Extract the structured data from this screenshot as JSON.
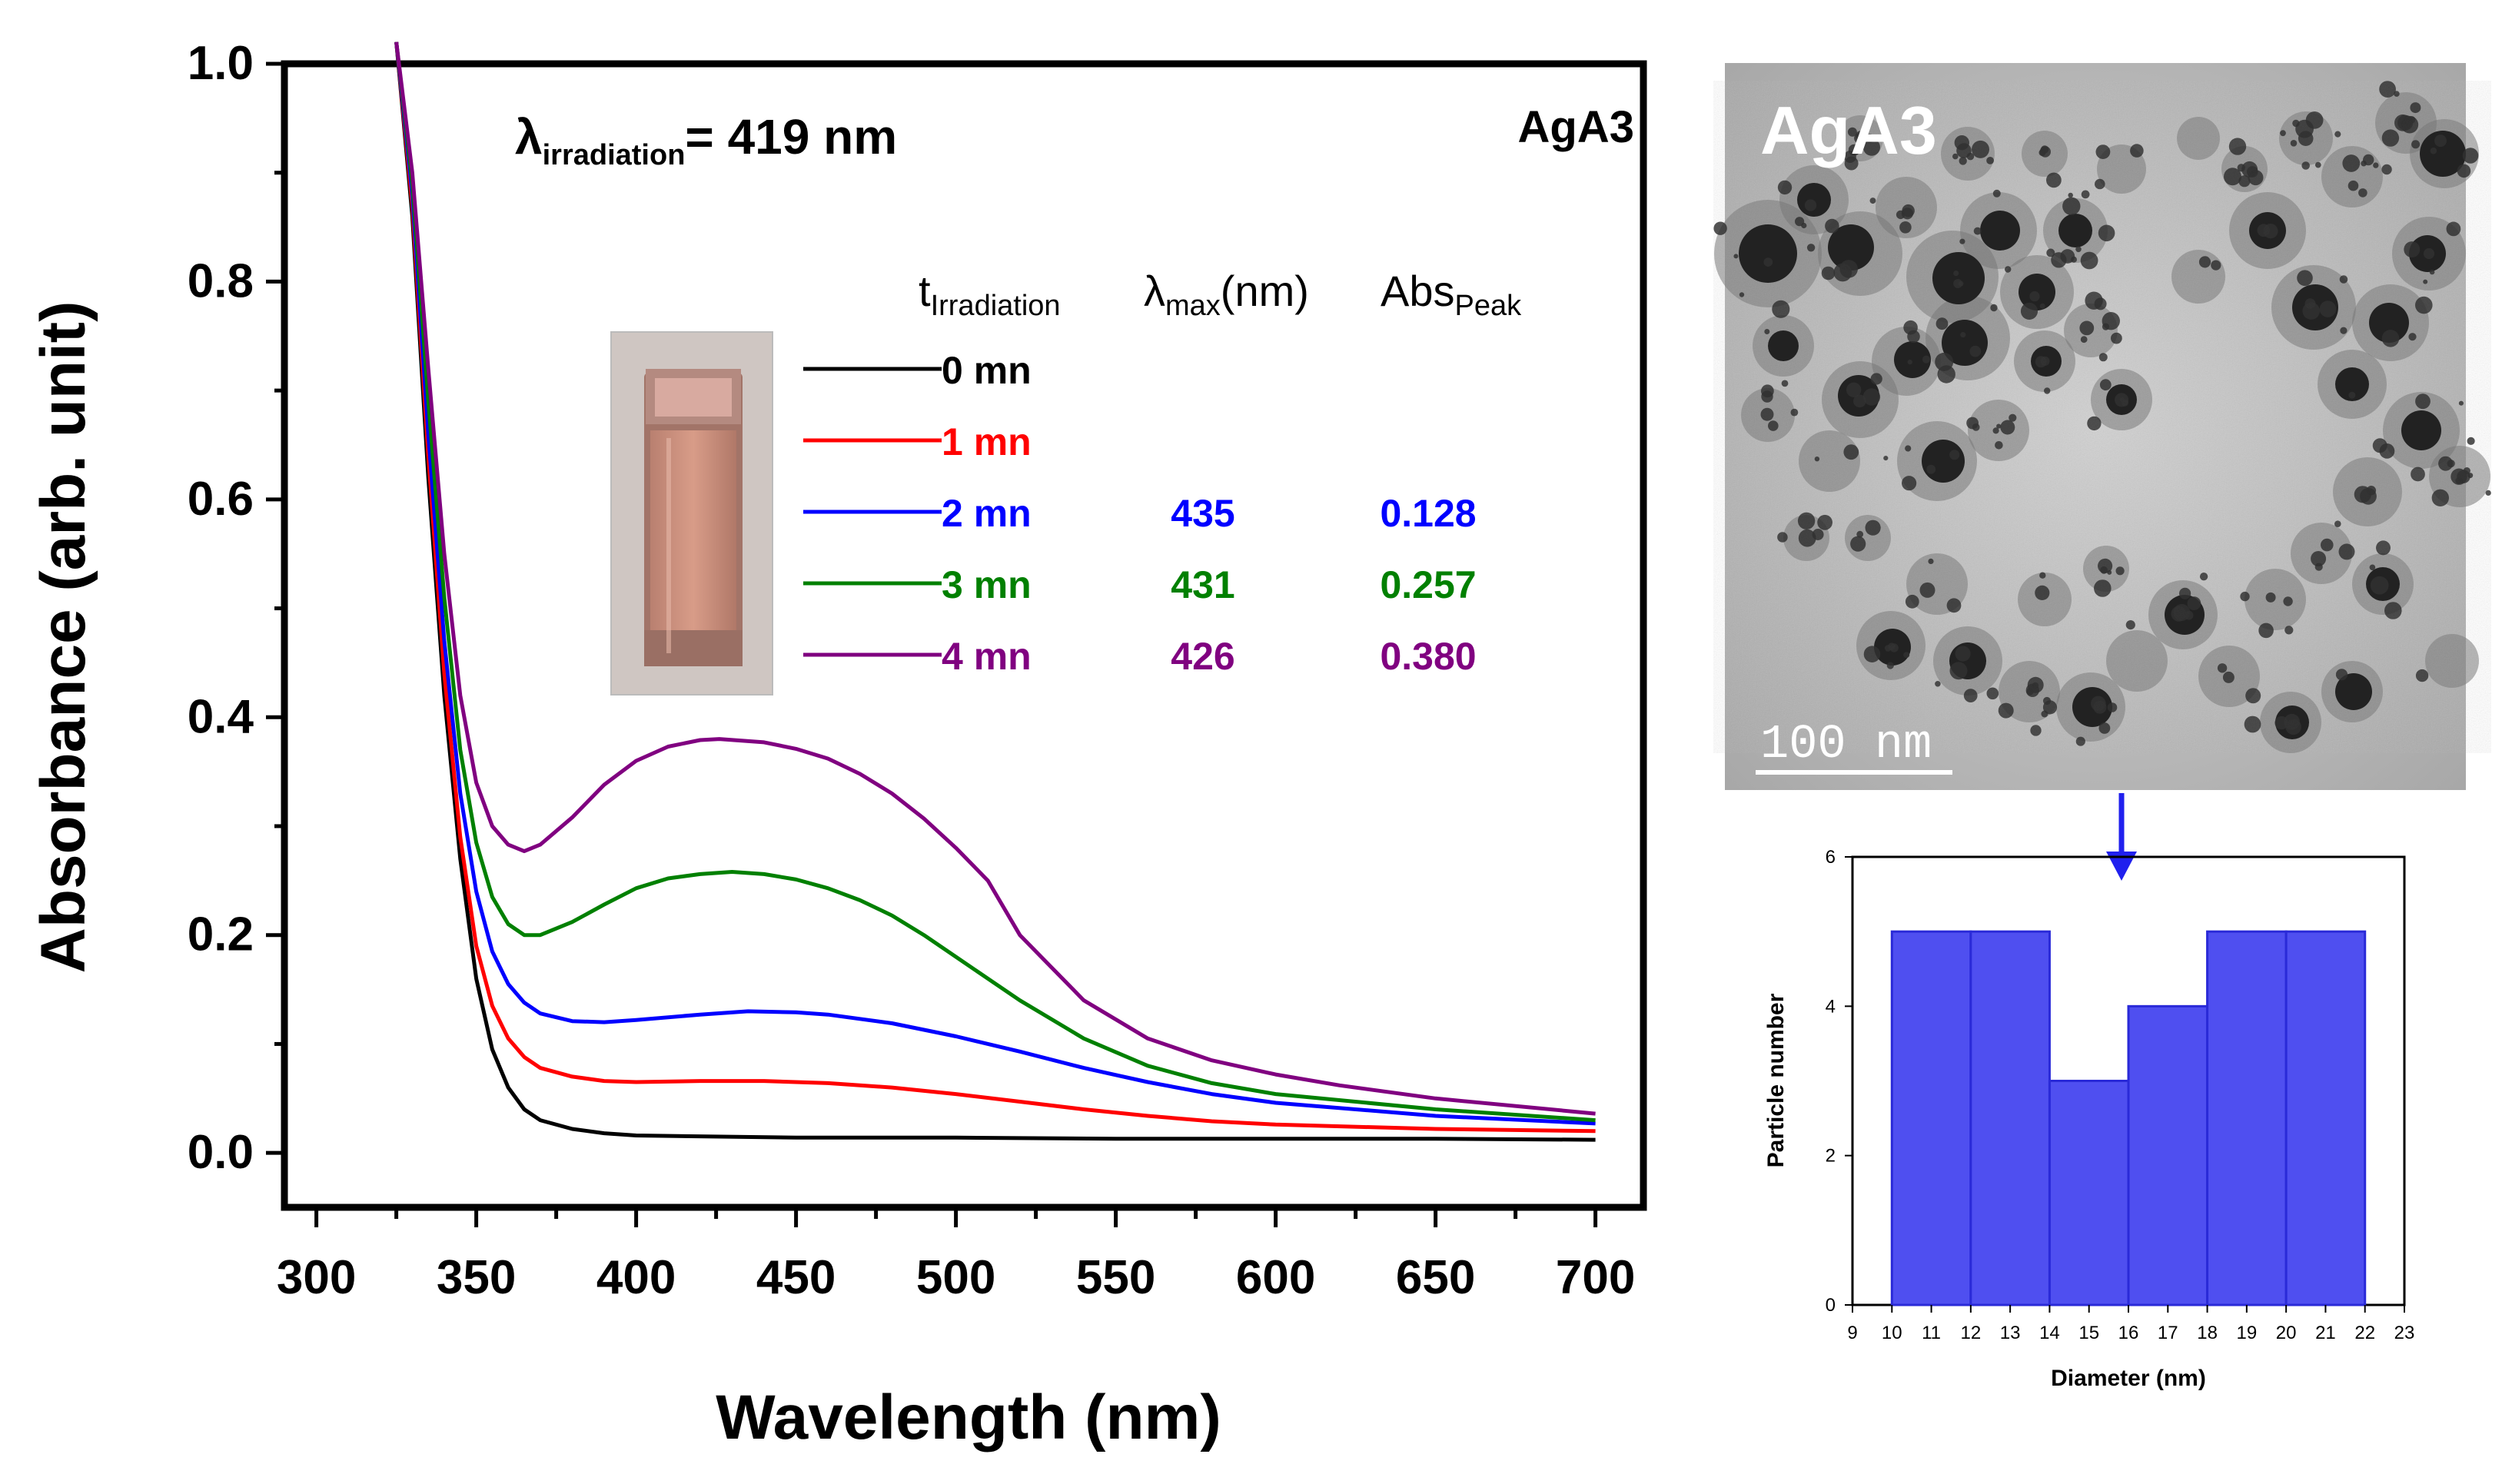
{
  "chart_data": [
    {
      "type": "line",
      "panel": "uv-vis spectra",
      "sample_label": "AgA3",
      "xlabel": "Wavelength (nm)",
      "ylabel": "Absorbance (arb. unit)",
      "xlim": [
        290,
        715
      ],
      "ylim": [
        -0.05,
        1.0
      ],
      "xticks": [
        "300",
        "350",
        "400",
        "450",
        "500",
        "550",
        "600",
        "650",
        "700"
      ],
      "yticks": [
        "0.0",
        "0.2",
        "0.4",
        "0.6",
        "0.8",
        "1.0"
      ],
      "irradiation": {
        "symbol": "λ",
        "subscript": "irradiation",
        "value": "= 419 nm"
      },
      "legend_headers": {
        "time": "t",
        "time_sub": "Irradiation",
        "lmax": "λ",
        "lmax_sub": "max",
        "lmax_unit": "(nm)",
        "abs": "Abs",
        "abs_sub": "Peak"
      },
      "series": [
        {
          "name": "0 mn",
          "color": "#000000",
          "lambda_max": "",
          "abs_peak": "",
          "points": [
            [
              325,
              1.02
            ],
            [
              330,
              0.86
            ],
            [
              335,
              0.62
            ],
            [
              340,
              0.42
            ],
            [
              345,
              0.27
            ],
            [
              350,
              0.16
            ],
            [
              355,
              0.095
            ],
            [
              360,
              0.06
            ],
            [
              365,
              0.04
            ],
            [
              370,
              0.03
            ],
            [
              380,
              0.022
            ],
            [
              390,
              0.018
            ],
            [
              400,
              0.016
            ],
            [
              450,
              0.014
            ],
            [
              500,
              0.014
            ],
            [
              550,
              0.013
            ],
            [
              600,
              0.013
            ],
            [
              650,
              0.013
            ],
            [
              700,
              0.012
            ]
          ]
        },
        {
          "name": "1 mn",
          "color": "#ff0000",
          "lambda_max": "",
          "abs_peak": "",
          "points": [
            [
              325,
              1.02
            ],
            [
              330,
              0.87
            ],
            [
              335,
              0.64
            ],
            [
              340,
              0.44
            ],
            [
              345,
              0.29
            ],
            [
              350,
              0.19
            ],
            [
              355,
              0.135
            ],
            [
              360,
              0.105
            ],
            [
              365,
              0.088
            ],
            [
              370,
              0.078
            ],
            [
              380,
              0.07
            ],
            [
              390,
              0.066
            ],
            [
              400,
              0.065
            ],
            [
              420,
              0.066
            ],
            [
              440,
              0.066
            ],
            [
              460,
              0.064
            ],
            [
              480,
              0.06
            ],
            [
              500,
              0.054
            ],
            [
              520,
              0.047
            ],
            [
              540,
              0.04
            ],
            [
              560,
              0.034
            ],
            [
              580,
              0.029
            ],
            [
              600,
              0.026
            ],
            [
              650,
              0.022
            ],
            [
              700,
              0.02
            ]
          ]
        },
        {
          "name": "2 mn",
          "color": "#0000ff",
          "lambda_max": "435",
          "abs_peak": "0.128",
          "points": [
            [
              325,
              1.02
            ],
            [
              330,
              0.88
            ],
            [
              335,
              0.66
            ],
            [
              340,
              0.47
            ],
            [
              345,
              0.33
            ],
            [
              350,
              0.24
            ],
            [
              355,
              0.185
            ],
            [
              360,
              0.155
            ],
            [
              365,
              0.138
            ],
            [
              370,
              0.128
            ],
            [
              380,
              0.121
            ],
            [
              390,
              0.12
            ],
            [
              400,
              0.122
            ],
            [
              420,
              0.127
            ],
            [
              435,
              0.13
            ],
            [
              450,
              0.129
            ],
            [
              460,
              0.127
            ],
            [
              480,
              0.119
            ],
            [
              500,
              0.107
            ],
            [
              520,
              0.093
            ],
            [
              540,
              0.078
            ],
            [
              560,
              0.065
            ],
            [
              580,
              0.054
            ],
            [
              600,
              0.046
            ],
            [
              650,
              0.034
            ],
            [
              700,
              0.027
            ]
          ]
        },
        {
          "name": "3 mn",
          "color": "#008000",
          "lambda_max": "431",
          "abs_peak": "0.257",
          "points": [
            [
              325,
              1.02
            ],
            [
              330,
              0.89
            ],
            [
              335,
              0.69
            ],
            [
              340,
              0.51
            ],
            [
              345,
              0.37
            ],
            [
              350,
              0.285
            ],
            [
              355,
              0.235
            ],
            [
              360,
              0.21
            ],
            [
              365,
              0.2
            ],
            [
              370,
              0.2
            ],
            [
              380,
              0.212
            ],
            [
              390,
              0.228
            ],
            [
              400,
              0.243
            ],
            [
              410,
              0.252
            ],
            [
              420,
              0.256
            ],
            [
              430,
              0.258
            ],
            [
              440,
              0.256
            ],
            [
              450,
              0.251
            ],
            [
              460,
              0.243
            ],
            [
              470,
              0.232
            ],
            [
              480,
              0.218
            ],
            [
              490,
              0.2
            ],
            [
              500,
              0.18
            ],
            [
              520,
              0.14
            ],
            [
              540,
              0.105
            ],
            [
              560,
              0.08
            ],
            [
              580,
              0.064
            ],
            [
              600,
              0.054
            ],
            [
              650,
              0.04
            ],
            [
              700,
              0.03
            ]
          ]
        },
        {
          "name": "4 mn",
          "color": "#800080",
          "lambda_max": "426",
          "abs_peak": "0.380",
          "points": [
            [
              325,
              1.02
            ],
            [
              330,
              0.9
            ],
            [
              335,
              0.72
            ],
            [
              340,
              0.55
            ],
            [
              345,
              0.42
            ],
            [
              350,
              0.34
            ],
            [
              355,
              0.3
            ],
            [
              360,
              0.283
            ],
            [
              365,
              0.277
            ],
            [
              370,
              0.283
            ],
            [
              380,
              0.308
            ],
            [
              390,
              0.338
            ],
            [
              400,
              0.36
            ],
            [
              410,
              0.373
            ],
            [
              420,
              0.379
            ],
            [
              426,
              0.38
            ],
            [
              440,
              0.377
            ],
            [
              450,
              0.371
            ],
            [
              460,
              0.362
            ],
            [
              470,
              0.348
            ],
            [
              480,
              0.33
            ],
            [
              490,
              0.307
            ],
            [
              500,
              0.28
            ],
            [
              510,
              0.25
            ],
            [
              520,
              0.2
            ],
            [
              530,
              0.17
            ],
            [
              540,
              0.14
            ],
            [
              560,
              0.105
            ],
            [
              580,
              0.085
            ],
            [
              600,
              0.072
            ],
            [
              620,
              0.062
            ],
            [
              650,
              0.05
            ],
            [
              700,
              0.036
            ]
          ]
        }
      ]
    },
    {
      "type": "bar",
      "panel": "size histogram",
      "xlabel": "Diameter (nm)",
      "ylabel": "Particle number",
      "xlim": [
        9,
        23
      ],
      "ylim": [
        0,
        6
      ],
      "xticks": [
        "9",
        "10",
        "11",
        "12",
        "13",
        "14",
        "15",
        "16",
        "17",
        "18",
        "19",
        "20",
        "21",
        "22",
        "23"
      ],
      "yticks": [
        "0",
        "2",
        "4",
        "6"
      ],
      "bins": [
        {
          "from": 10,
          "to": 12,
          "value": 5
        },
        {
          "from": 12,
          "to": 14,
          "value": 5
        },
        {
          "from": 14,
          "to": 16,
          "value": 3
        },
        {
          "from": 16,
          "to": 18,
          "value": 4
        },
        {
          "from": 18,
          "to": 20,
          "value": 5
        },
        {
          "from": 20,
          "to": 22,
          "value": 5
        }
      ],
      "bar_color": "#4f4ff0",
      "bar_edge": "#2a2ad8"
    }
  ],
  "tem": {
    "label": "AgA3",
    "scale_label": "100 nm"
  },
  "colors": {
    "arrow": "#2020ee"
  }
}
